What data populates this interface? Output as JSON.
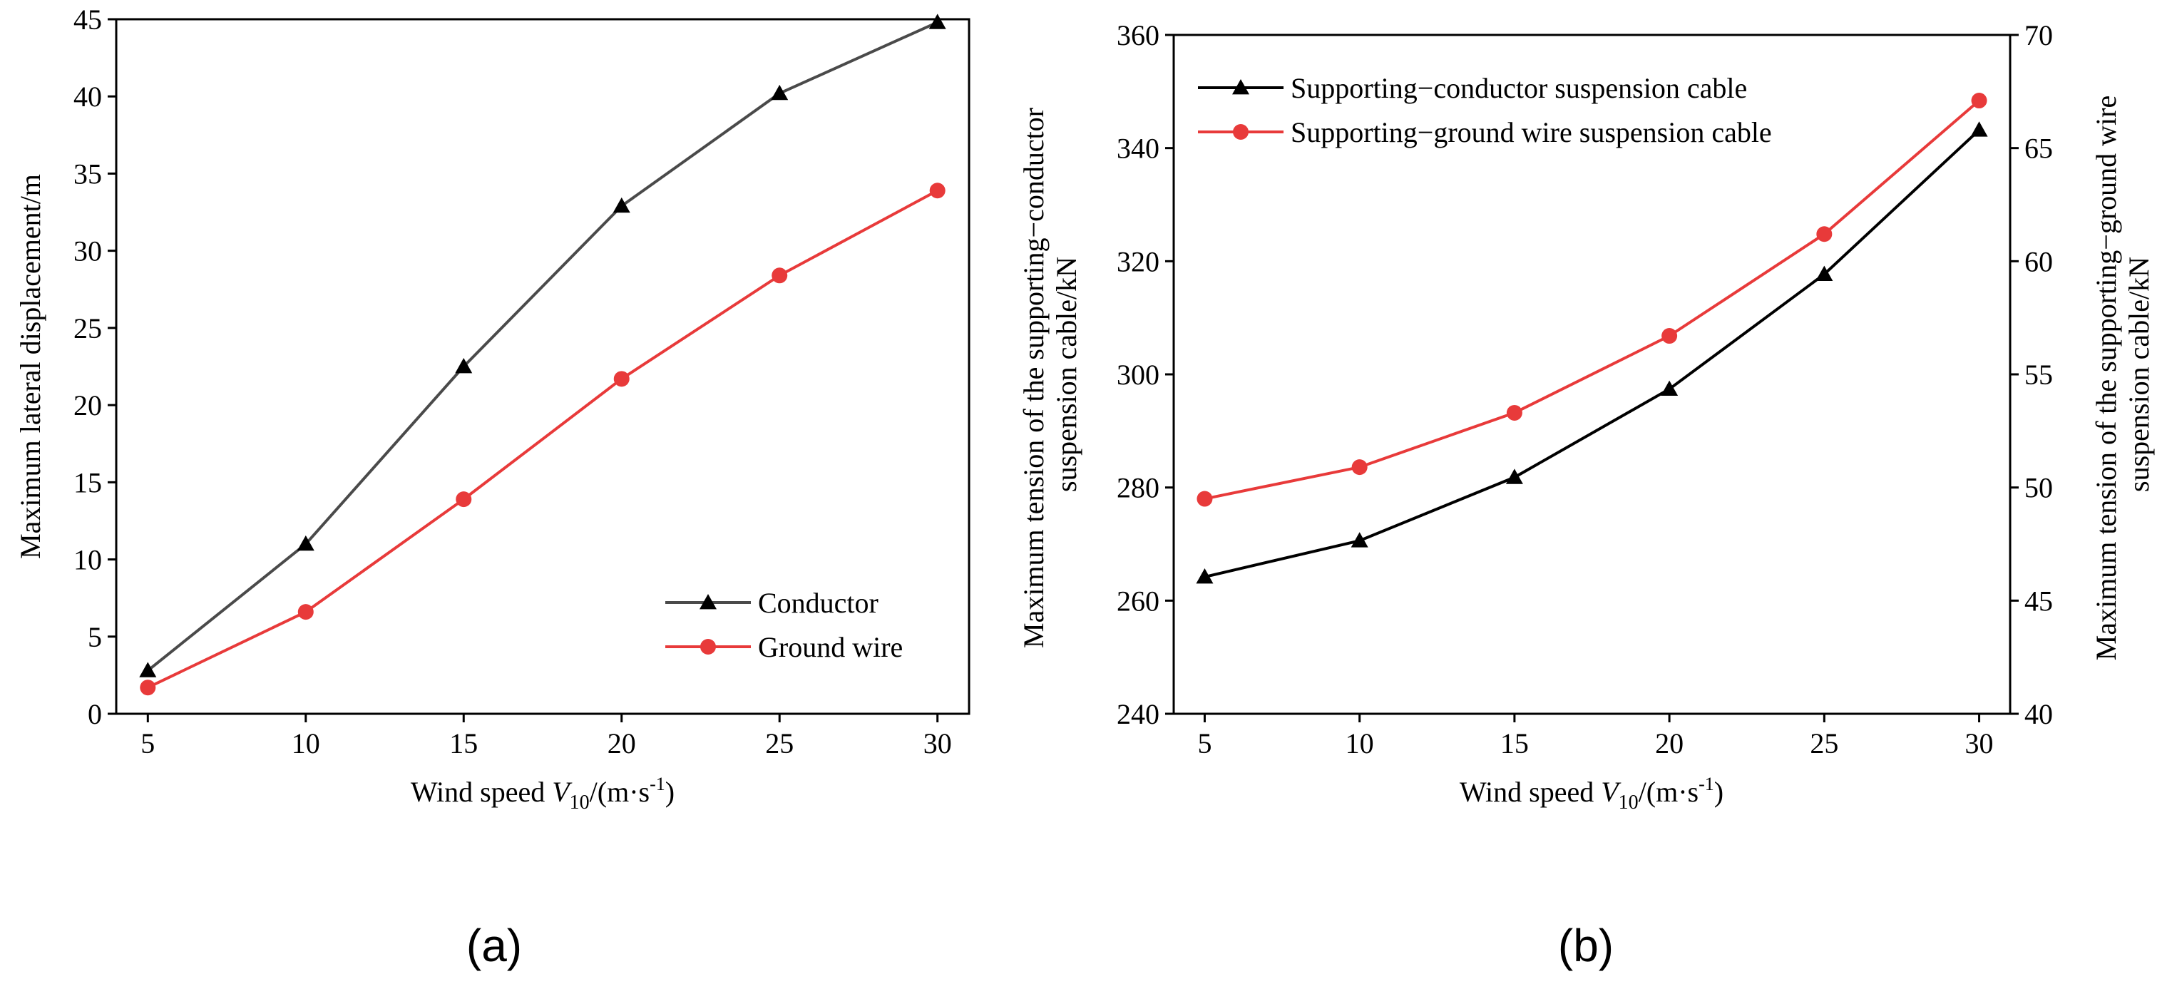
{
  "chart_data": [
    {
      "type": "line",
      "panel_label": "(a)",
      "x": [
        5,
        10,
        15,
        20,
        25,
        30
      ],
      "xlim": [
        4,
        31
      ],
      "xticks": [
        5,
        10,
        15,
        20,
        25,
        30
      ],
      "xlabel": {
        "prefix": "Wind speed ",
        "var": "V",
        "sub": "10",
        "unit_a": "/(m·s",
        "sup": "-1",
        "unit_b": ")"
      },
      "ylabel": "Maximum lateral displacement/m",
      "ylim": [
        0,
        45
      ],
      "yticks": [
        0,
        5,
        10,
        15,
        20,
        25,
        30,
        35,
        40,
        45
      ],
      "legend_position": "bottom-right",
      "series": [
        {
          "name": "Conductor",
          "color": "#4a4a4a",
          "marker": "triangle",
          "values": [
            2.8,
            11.0,
            22.5,
            32.9,
            40.2,
            44.8
          ]
        },
        {
          "name": "Ground wire",
          "color": "#e83a3a",
          "marker": "circle",
          "values": [
            1.7,
            6.6,
            13.9,
            21.7,
            28.4,
            33.9
          ]
        }
      ]
    },
    {
      "type": "line",
      "panel_label": "(b)",
      "x": [
        5,
        10,
        15,
        20,
        25,
        30
      ],
      "xlim": [
        4,
        31
      ],
      "xticks": [
        5,
        10,
        15,
        20,
        25,
        30
      ],
      "xlabel": {
        "prefix": "Wind speed ",
        "var": "V",
        "sub": "10",
        "unit_a": "/(m·s",
        "sup": "-1",
        "unit_b": ")"
      },
      "ylabel_left": [
        "Maximum tension of the supporting−conductor",
        "suspension cable/kN"
      ],
      "ylim_left": [
        240,
        360
      ],
      "yticks_left": [
        240,
        260,
        280,
        300,
        320,
        340,
        360
      ],
      "ylabel_right": [
        "Maximum tension of the supporting−ground wire",
        "suspension cable/kN"
      ],
      "ylim_right": [
        40,
        70
      ],
      "yticks_right": [
        40,
        45,
        50,
        55,
        60,
        65,
        70
      ],
      "legend_position": "top-left",
      "series": [
        {
          "name": "Supporting−conductor suspension cable",
          "axis": "left",
          "color": "#000000",
          "marker": "triangle",
          "values": [
            264.2,
            270.6,
            281.8,
            297.4,
            317.7,
            343.2
          ]
        },
        {
          "name": "Supporting−ground wire suspension cable",
          "axis": "right",
          "color": "#e83a3a",
          "marker": "circle",
          "values": [
            49.5,
            50.9,
            53.3,
            56.7,
            61.2,
            67.1
          ]
        }
      ]
    }
  ]
}
